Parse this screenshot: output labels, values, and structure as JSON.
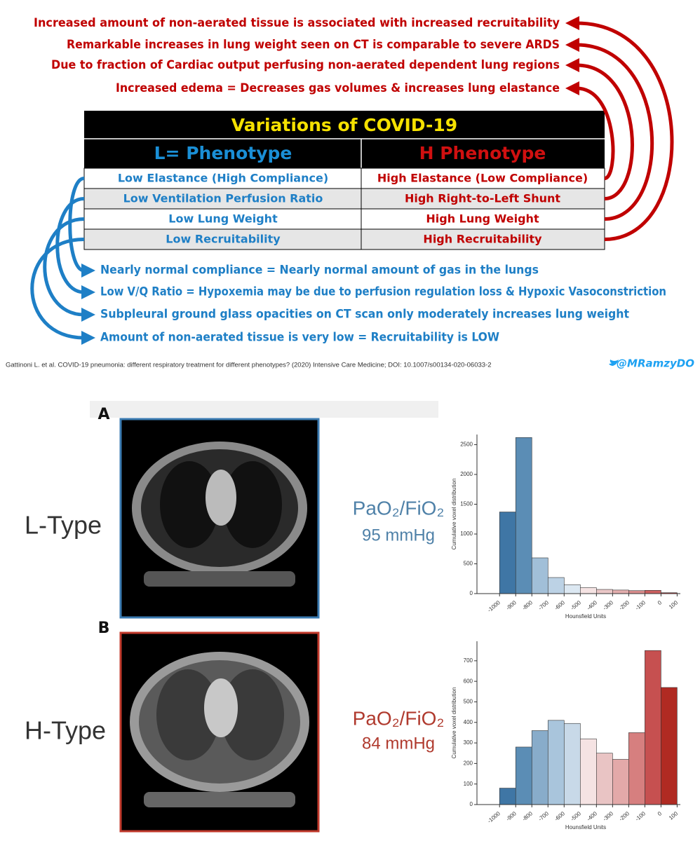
{
  "annotations_h": [
    "Increased amount of non-aerated tissue is associated with increased recruitability",
    "Remarkable increases in lung weight seen on CT is comparable to severe ARDS",
    "Due to fraction of Cardiac output perfusing non-aerated dependent lung regions",
    "Increased edema = Decreases gas volumes & increases lung elastance"
  ],
  "table": {
    "title": "Variations of COVID-19",
    "header": [
      "L= Phenotype",
      "H Phenotype"
    ],
    "rows": [
      [
        "Low Elastance (High Compliance)",
        "High Elastance (Low Compliance)"
      ],
      [
        "Low Ventilation Perfusion Ratio",
        "High Right-to-Left Shunt"
      ],
      [
        "Low Lung Weight",
        "High Lung Weight"
      ],
      [
        "Low Recruitability",
        "High Recruitability"
      ]
    ]
  },
  "annotations_l": [
    "Nearly normal compliance = Nearly normal amount of gas in the lungs",
    "Low V/Q Ratio = Hypoxemia may be due to perfusion regulation loss & Hypoxic Vasoconstriction",
    "Subpleural ground glass opacities on CT scan only moderately increases lung weight",
    "Amount of non-aerated tissue is very low = Recruitability is LOW"
  ],
  "citation": "Gattinoni L. et al. COVID-19 pneumonia: different respiratory treatment for different phenotypes? (2020) Intensive Care Medicine; DOI: 10.1007/s00134-020-06033-2",
  "handle": "@MRamzyDO",
  "panels": [
    {
      "letter": "A",
      "type_label": "L-Type",
      "ratio_label": "PaO₂/FiO₂",
      "ratio_value": "95 mmHg"
    },
    {
      "letter": "B",
      "type_label": "H-Type",
      "ratio_label": "PaO₂/FiO₂",
      "ratio_value": "84 mmHg"
    }
  ],
  "chart_data": [
    {
      "type": "histogram",
      "xlabel": "Hounsfield Units",
      "ylabel": "Cumulative voxel distribution",
      "bins": [
        -1000,
        -900,
        -800,
        -700,
        -600,
        -500,
        -400,
        -300,
        -200,
        -100,
        0,
        100
      ],
      "values": [
        1370,
        2620,
        600,
        270,
        150,
        100,
        70,
        60,
        50,
        55,
        15
      ],
      "colors": [
        "#3f76a5",
        "#5b8db5",
        "#a1bfd8",
        "#bcd2e5",
        "#dce8f2",
        "#f5e3e3",
        "#eac7c7",
        "#e3aeae",
        "#d98c8c",
        "#cc5f5f",
        "#b33030"
      ],
      "xlim": [
        -1140,
        120
      ],
      "ylim": [
        0,
        2670
      ],
      "xticks": [
        -1000,
        -900,
        -800,
        -700,
        -600,
        -500,
        -400,
        -300,
        -200,
        -100,
        0,
        100
      ],
      "yticks": [
        0,
        500,
        1000,
        1500,
        2000,
        2500
      ]
    },
    {
      "type": "histogram",
      "xlabel": "Hounsfield Units",
      "ylabel": "Cumulative voxel distribution",
      "bins": [
        -1000,
        -900,
        -800,
        -700,
        -600,
        -500,
        -400,
        -300,
        -200,
        -100,
        0,
        100
      ],
      "values": [
        80,
        280,
        360,
        410,
        395,
        320,
        250,
        220,
        350,
        750,
        570
      ],
      "colors": [
        "#3f76a5",
        "#5b8db5",
        "#88acca",
        "#a9c5dc",
        "#c8d9e8",
        "#f5e3e3",
        "#e9c4c4",
        "#e3a9a9",
        "#d67f7f",
        "#c65050",
        "#b02a22"
      ],
      "xlim": [
        -1140,
        120
      ],
      "ylim": [
        0,
        795
      ],
      "xticks": [
        -1000,
        -900,
        -800,
        -700,
        -600,
        -500,
        -400,
        -300,
        -200,
        -100,
        0,
        100
      ],
      "yticks": [
        0,
        100,
        200,
        300,
        400,
        500,
        600,
        700
      ]
    }
  ]
}
